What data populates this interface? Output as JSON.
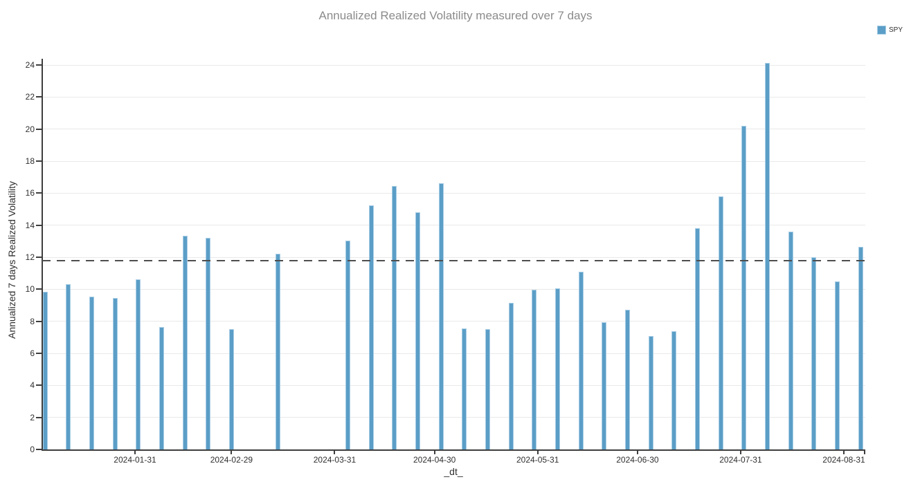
{
  "header": {
    "title": "Annualized Realized Volatility measured over 7 days"
  },
  "legend": {
    "items": [
      {
        "label": "SPY",
        "color": "#5b9ec7"
      }
    ]
  },
  "chart_data": {
    "type": "bar",
    "title": "Annualized Realized Volatility measured over 7 days",
    "xlabel": "_dt_",
    "ylabel": "Annualized 7 days Realized Volatility",
    "ylim": [
      0,
      24
    ],
    "ytick_step": 2,
    "grid": "horizontal",
    "legend_position": "top-right",
    "bar_color": "#5b9ec7",
    "xticks": [
      "2024-01-31",
      "2024-02-29",
      "2024-03-31",
      "2024-04-30",
      "2024-05-31",
      "2024-06-30",
      "2024-07-31",
      "2024-08-31"
    ],
    "reference_line": {
      "y": 11.8,
      "style": "dashed",
      "color": "#4d4d4d"
    },
    "series": [
      {
        "name": "SPY",
        "color": "#5b9ec7",
        "x": [
          "2024-01-04",
          "2024-01-11",
          "2024-01-18",
          "2024-01-25",
          "2024-02-01",
          "2024-02-08",
          "2024-02-15",
          "2024-02-22",
          "2024-02-29",
          "2024-03-14",
          "2024-04-04",
          "2024-04-11",
          "2024-04-18",
          "2024-04-25",
          "2024-05-02",
          "2024-05-09",
          "2024-05-16",
          "2024-05-23",
          "2024-05-30",
          "2024-06-06",
          "2024-06-13",
          "2024-06-20",
          "2024-06-27",
          "2024-07-04",
          "2024-07-11",
          "2024-07-18",
          "2024-07-25",
          "2024-08-01",
          "2024-08-08",
          "2024-08-15",
          "2024-08-22",
          "2024-08-29",
          "2024-09-05"
        ],
        "values": [
          9.85,
          10.3,
          9.55,
          9.45,
          10.6,
          7.65,
          13.35,
          13.2,
          7.5,
          12.2,
          13.05,
          15.25,
          16.45,
          14.8,
          16.6,
          7.55,
          7.5,
          9.15,
          9.95,
          10.05,
          11.1,
          7.95,
          8.7,
          7.1,
          7.4,
          13.8,
          15.8,
          20.2,
          24.15,
          13.6,
          12.0,
          10.5,
          12.65
        ]
      }
    ]
  }
}
